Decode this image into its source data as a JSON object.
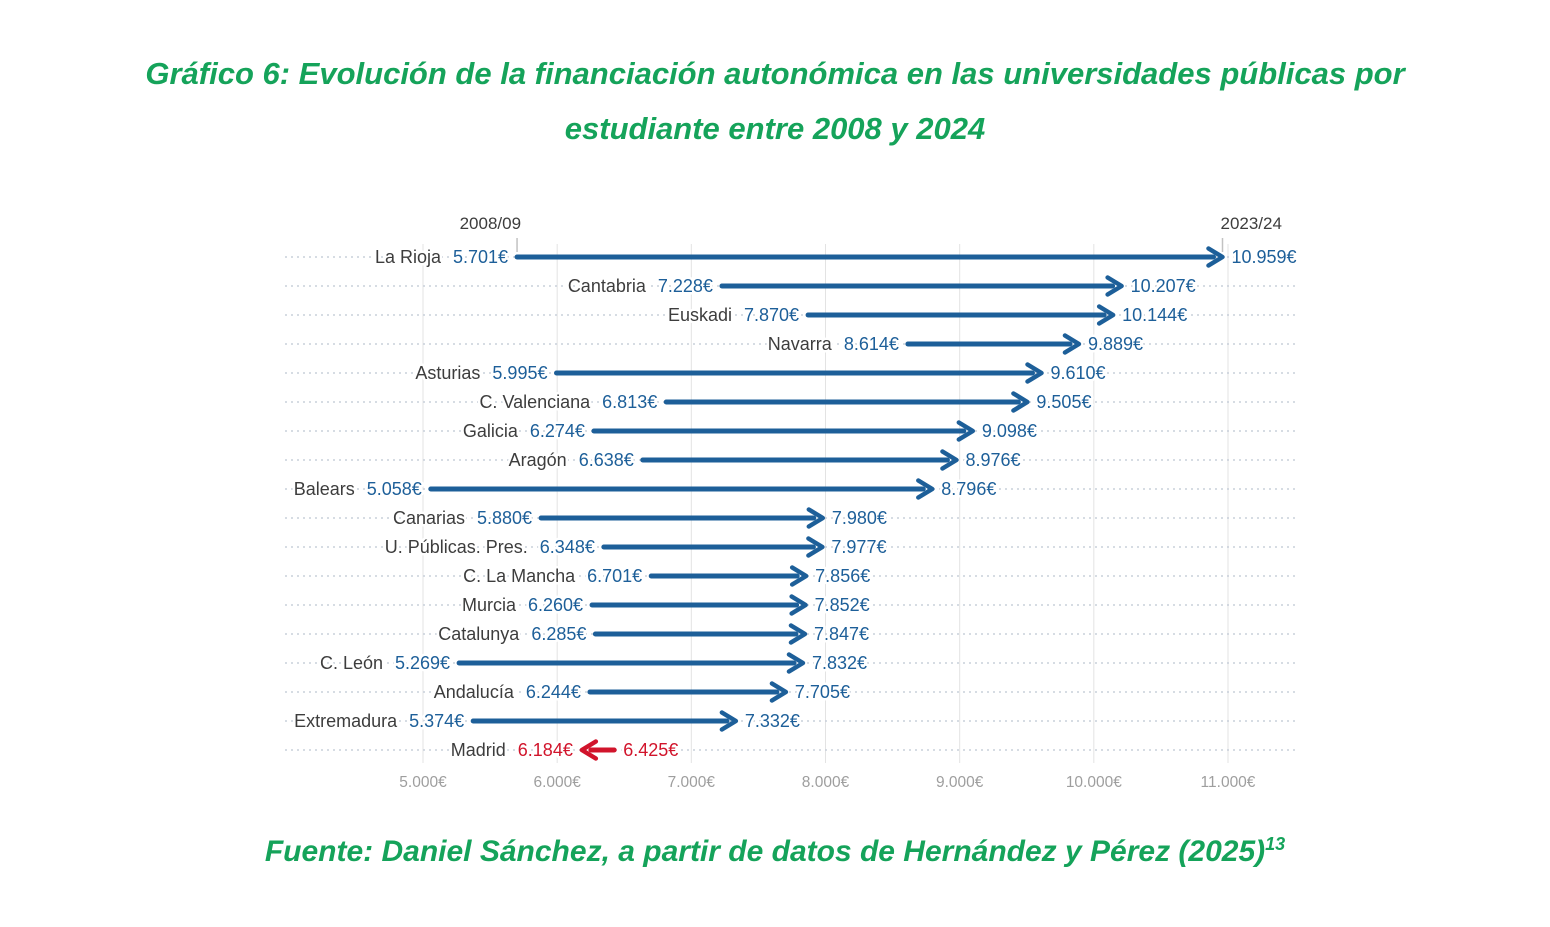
{
  "title": {
    "line1": "Gráfico 6: Evolución de la financiación autonómica en las universidades públicas por",
    "line2": "estudiante entre 2008 y 2024"
  },
  "source": {
    "text": "Fuente: Daniel Sánchez, a partir de datos de Hernández y Pérez (2025)",
    "superscript": "13"
  },
  "colors": {
    "title_green": "#15a35a",
    "increase_blue": "#1d5f99",
    "decrease_red": "#d1142b",
    "region_text": "#3d3d3d",
    "header_text": "#3d3d3d",
    "axis_text": "#9e9e9e",
    "vertical_grid": "#e3e3e3",
    "dotted_grid": "#c9d0da",
    "tick_mark": "#c2c2c2"
  },
  "chart_data": {
    "type": "arrow",
    "title": "Gráfico 6: Evolución de la financiación autonómica en las universidades públicas por estudiante entre 2008 y 2024",
    "source": "Fuente: Daniel Sánchez, a partir de datos de Hernández y Pérez (2025)13",
    "column_headers": {
      "start": "2008/09",
      "end": "2023/24"
    },
    "unit": "€",
    "x_axis": {
      "min": 5000,
      "max": 11000,
      "tick_step": 1000,
      "tick_labels": [
        "5.000€",
        "6.000€",
        "7.000€",
        "8.000€",
        "9.000€",
        "10.000€",
        "11.000€"
      ],
      "grid": true
    },
    "legend_position": "none",
    "colors": {
      "increase": "#1d5f99",
      "decrease": "#d1142b"
    },
    "rows": [
      {
        "name": "La Rioja",
        "start": 5701,
        "end": 10959,
        "start_label": "5.701€",
        "end_label": "10.959€",
        "direction": "increase"
      },
      {
        "name": "Cantabria",
        "start": 7228,
        "end": 10207,
        "start_label": "7.228€",
        "end_label": "10.207€",
        "direction": "increase"
      },
      {
        "name": "Euskadi",
        "start": 7870,
        "end": 10144,
        "start_label": "7.870€",
        "end_label": "10.144€",
        "direction": "increase"
      },
      {
        "name": "Navarra",
        "start": 8614,
        "end": 9889,
        "start_label": "8.614€",
        "end_label": "9.889€",
        "direction": "increase"
      },
      {
        "name": "Asturias",
        "start": 5995,
        "end": 9610,
        "start_label": "5.995€",
        "end_label": "9.610€",
        "direction": "increase"
      },
      {
        "name": "C. Valenciana",
        "start": 6813,
        "end": 9505,
        "start_label": "6.813€",
        "end_label": "9.505€",
        "direction": "increase"
      },
      {
        "name": "Galicia",
        "start": 6274,
        "end": 9098,
        "start_label": "6.274€",
        "end_label": "9.098€",
        "direction": "increase"
      },
      {
        "name": "Aragón",
        "start": 6638,
        "end": 8976,
        "start_label": "6.638€",
        "end_label": "8.976€",
        "direction": "increase"
      },
      {
        "name": "Balears",
        "start": 5058,
        "end": 8796,
        "start_label": "5.058€",
        "end_label": "8.796€",
        "direction": "increase"
      },
      {
        "name": "Canarias",
        "start": 5880,
        "end": 7980,
        "start_label": "5.880€",
        "end_label": "7.980€",
        "direction": "increase"
      },
      {
        "name": "U. Públicas. Pres.",
        "start": 6348,
        "end": 7977,
        "start_label": "6.348€",
        "end_label": "7.977€",
        "direction": "increase"
      },
      {
        "name": "C. La Mancha",
        "start": 6701,
        "end": 7856,
        "start_label": "6.701€",
        "end_label": "7.856€",
        "direction": "increase"
      },
      {
        "name": "Murcia",
        "start": 6260,
        "end": 7852,
        "start_label": "6.260€",
        "end_label": "7.852€",
        "direction": "increase"
      },
      {
        "name": "Catalunya",
        "start": 6285,
        "end": 7847,
        "start_label": "6.285€",
        "end_label": "7.847€",
        "direction": "increase"
      },
      {
        "name": "C. León",
        "start": 5269,
        "end": 7832,
        "start_label": "5.269€",
        "end_label": "7.832€",
        "direction": "increase"
      },
      {
        "name": "Andalucía",
        "start": 6244,
        "end": 7705,
        "start_label": "6.244€",
        "end_label": "7.705€",
        "direction": "increase"
      },
      {
        "name": "Extremadura",
        "start": 5374,
        "end": 7332,
        "start_label": "5.374€",
        "end_label": "7.332€",
        "direction": "increase"
      },
      {
        "name": "Madrid",
        "start": 6425,
        "end": 6184,
        "start_label": "6.425€",
        "end_label": "6.184€",
        "direction": "decrease"
      }
    ]
  }
}
